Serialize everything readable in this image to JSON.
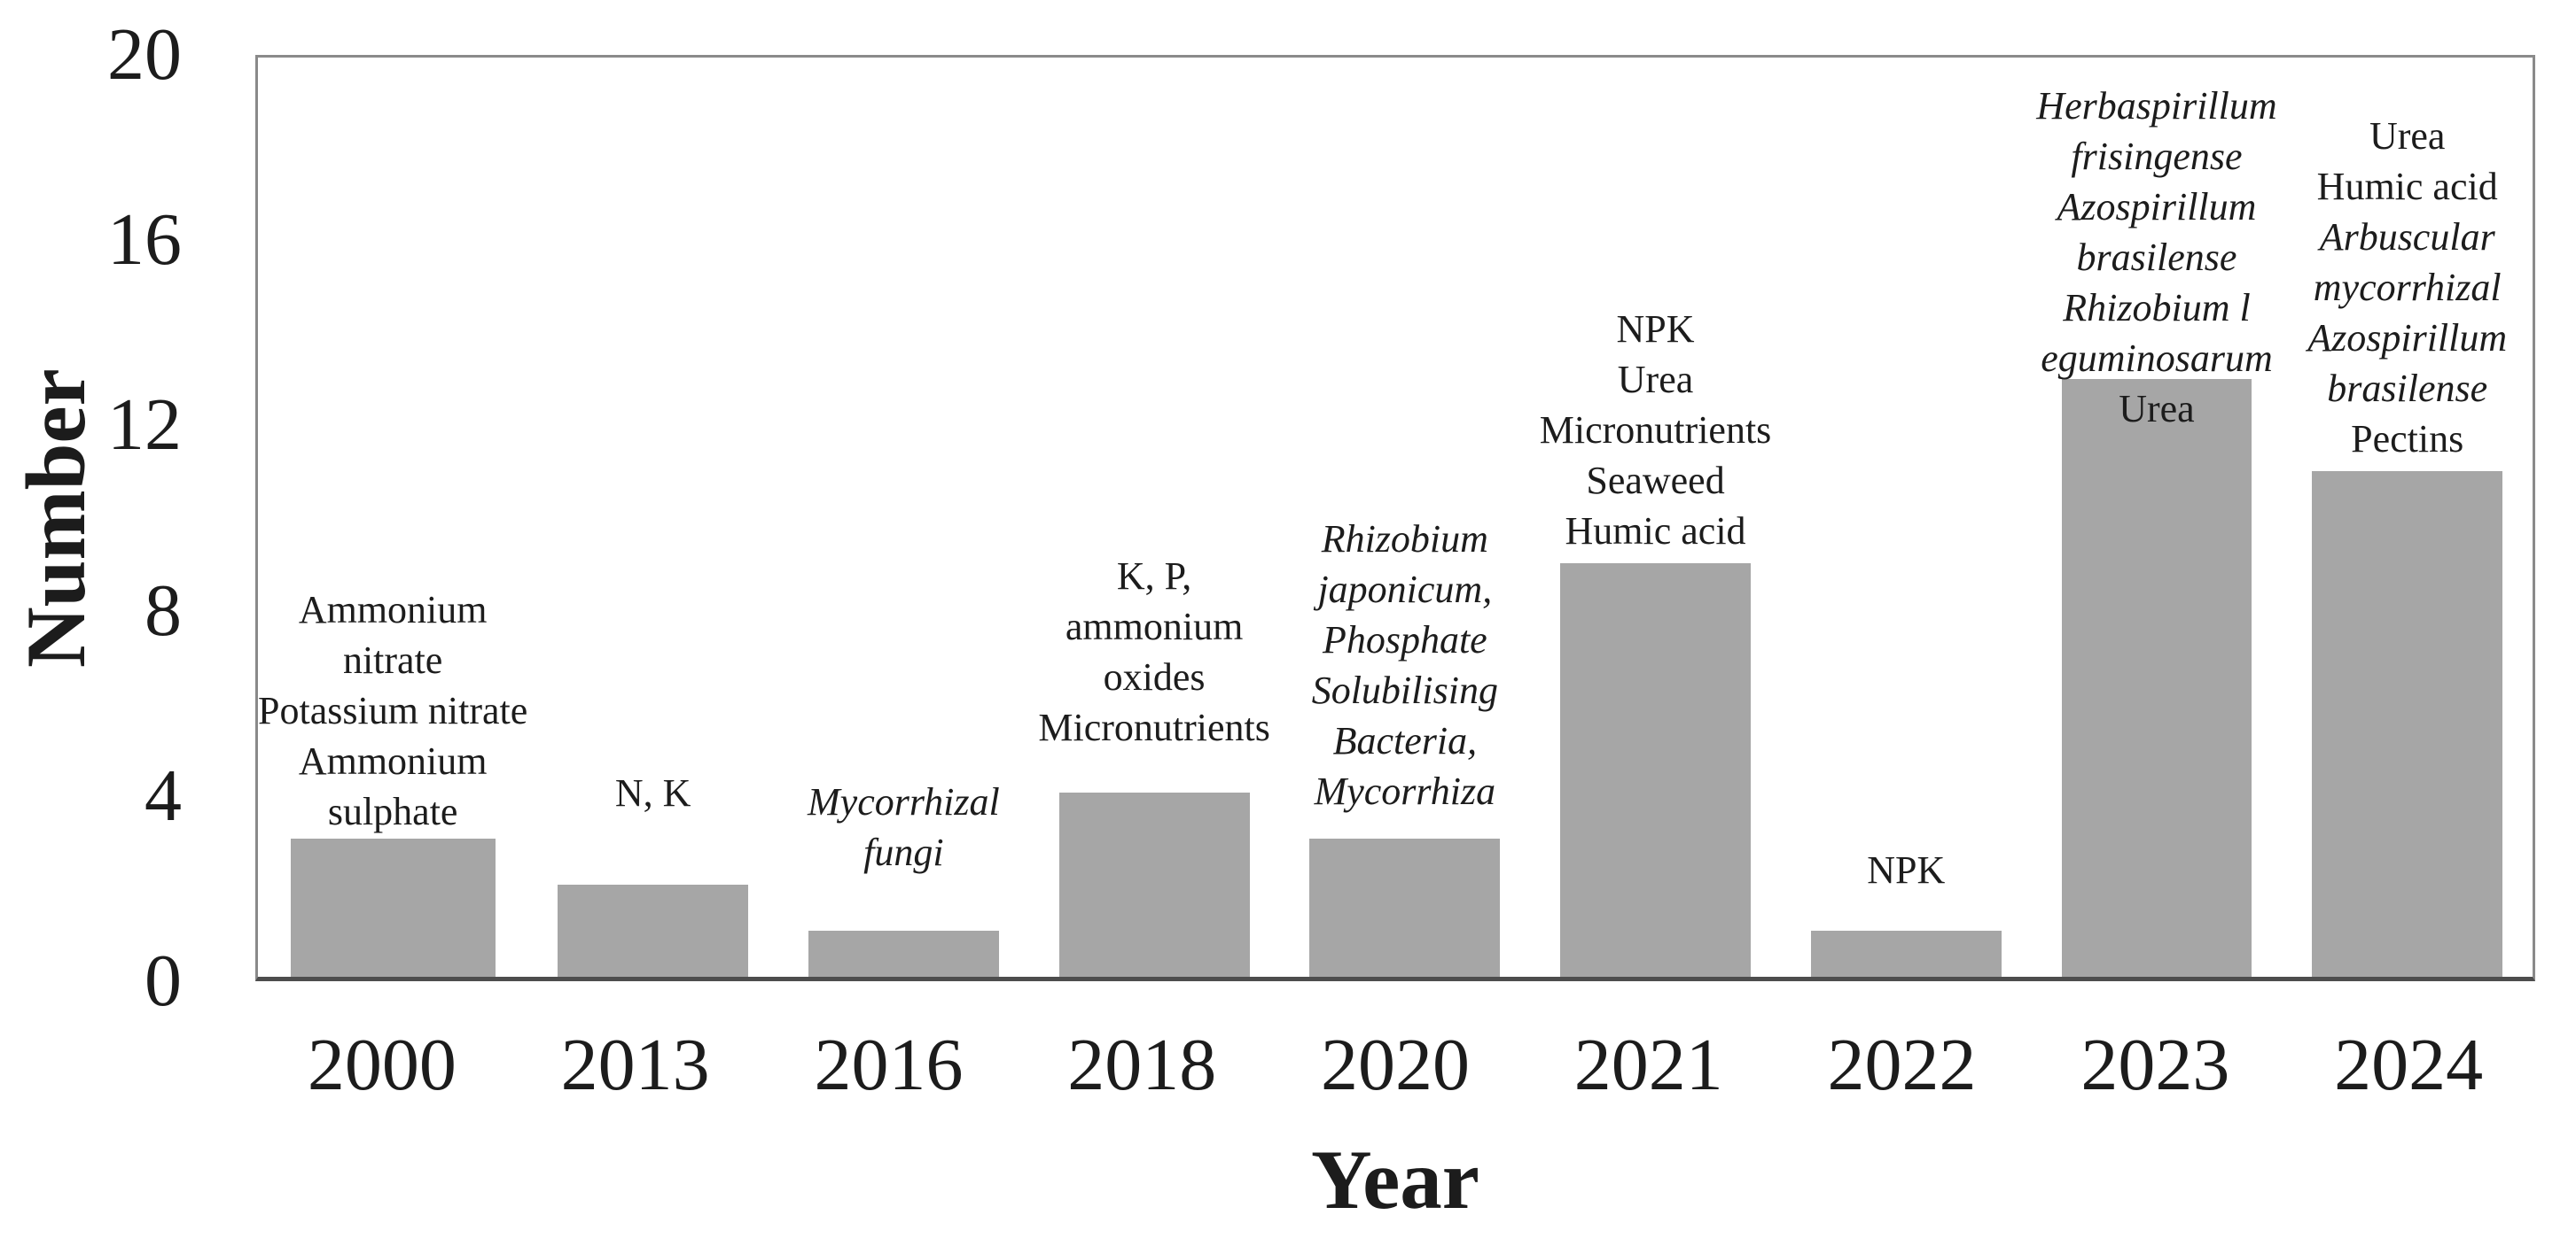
{
  "chart_data": {
    "type": "bar",
    "title": "",
    "xlabel": "Year",
    "ylabel": "Number",
    "ylim": [
      0,
      20
    ],
    "yticks": [
      0,
      4,
      8,
      12,
      16,
      20
    ],
    "grid": false,
    "legend": "none",
    "bar_color": "#a6a6a6",
    "frame_color": "#8a8a8a",
    "axis_color": "#4d4d4d",
    "categories": [
      "2000",
      "2013",
      "2016",
      "2018",
      "2020",
      "2021",
      "2022",
      "2023",
      "2024"
    ],
    "values": [
      3,
      2,
      1,
      4,
      3,
      9,
      1,
      13,
      11
    ],
    "annotations": [
      {
        "category": "2000",
        "lines": [
          {
            "t": "Ammonium",
            "i": false
          },
          {
            "t": "nitrate",
            "i": false
          },
          {
            "t": "Potassium nitrate",
            "i": false
          },
          {
            "t": "Ammonium",
            "i": false
          },
          {
            "t": "sulphate",
            "i": false
          }
        ]
      },
      {
        "category": "2013",
        "lines": [
          {
            "t": "N, K",
            "i": false
          }
        ]
      },
      {
        "category": "2016",
        "lines": [
          {
            "t": "Mycorrhizal",
            "i": true
          },
          {
            "t": "fungi",
            "i": true
          }
        ]
      },
      {
        "category": "2018",
        "lines": [
          {
            "t": "K, P,",
            "i": false
          },
          {
            "t": "ammonium",
            "i": false
          },
          {
            "t": "oxides",
            "i": false
          },
          {
            "t": "Micronutrients",
            "i": false
          }
        ]
      },
      {
        "category": "2020",
        "lines": [
          {
            "t": "Rhizobium",
            "i": true
          },
          {
            "t": "japonicum,",
            "i": true
          },
          {
            "t": "Phosphate",
            "i": true
          },
          {
            "t": "Solubilising",
            "i": true
          },
          {
            "t": "Bacteria,",
            "i": true
          },
          {
            "t": "Mycorrhiza",
            "i": true
          }
        ]
      },
      {
        "category": "2021",
        "lines": [
          {
            "t": "NPK",
            "i": false
          },
          {
            "t": "Urea",
            "i": false
          },
          {
            "t": "Micronutrients",
            "i": false
          },
          {
            "t": "Seaweed",
            "i": false
          },
          {
            "t": "Humic acid",
            "i": false
          }
        ]
      },
      {
        "category": "2022",
        "lines": [
          {
            "t": "NPK",
            "i": false
          }
        ]
      },
      {
        "category": "2023",
        "lines": [
          {
            "t": "Herbaspirillum",
            "i": true
          },
          {
            "t": "frisingense",
            "i": true
          },
          {
            "t": "Azospirillum",
            "i": true
          },
          {
            "t": "brasilense",
            "i": true
          },
          {
            "t": "Rhizobium l",
            "i": true
          },
          {
            "t": "eguminosarum",
            "i": true
          },
          {
            "t": "Urea",
            "i": false
          }
        ]
      },
      {
        "category": "2024",
        "lines": [
          {
            "t": "Urea",
            "i": false
          },
          {
            "t": "Humic acid",
            "i": false
          },
          {
            "t": "Arbuscular",
            "i": true
          },
          {
            "t": "mycorrhizal",
            "i": true
          },
          {
            "t": "Azospirillum",
            "i": true
          },
          {
            "t": "brasilense",
            "i": true
          },
          {
            "t": "Pectins",
            "i": false
          }
        ]
      }
    ]
  }
}
